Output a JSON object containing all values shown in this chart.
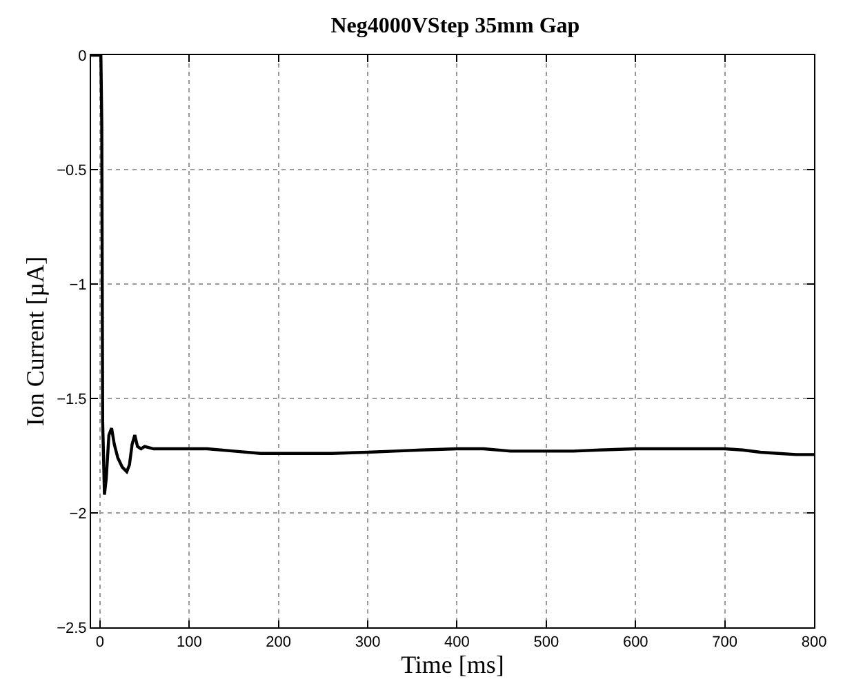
{
  "chart_data": {
    "type": "line",
    "title": "Neg4000VStep 35mm Gap",
    "xlabel": "Time [ms]",
    "ylabel": "Ion Current [µA]",
    "xlim": [
      -10,
      800
    ],
    "xticks": [
      0,
      100,
      200,
      300,
      400,
      500,
      600,
      700,
      800
    ],
    "ylim": [
      -2.5,
      0
    ],
    "yticks": [
      {
        "value": -2.5,
        "label": "−2.5"
      },
      {
        "value": -2,
        "label": "−2"
      },
      {
        "value": -1.5,
        "label": "−1.5"
      },
      {
        "value": -1,
        "label": "−1"
      },
      {
        "value": -0.5,
        "label": "−0.5"
      },
      0
    ],
    "grid": true,
    "line_style": "solid",
    "marker": "none",
    "series": [
      {
        "color": "#000000",
        "x": [
          -10,
          0,
          1,
          2,
          3,
          5,
          7,
          10,
          13,
          16,
          20,
          25,
          30,
          33,
          36,
          39,
          42,
          46,
          50,
          60,
          80,
          100,
          120,
          150,
          180,
          200,
          230,
          260,
          300,
          330,
          360,
          400,
          430,
          460,
          500,
          530,
          560,
          600,
          630,
          660,
          700,
          720,
          740,
          760,
          780,
          800
        ],
        "values": [
          0,
          0,
          0,
          -0.3,
          -1.6,
          -1.92,
          -1.85,
          -1.66,
          -1.63,
          -1.7,
          -1.76,
          -1.8,
          -1.82,
          -1.79,
          -1.7,
          -1.66,
          -1.71,
          -1.72,
          -1.71,
          -1.72,
          -1.72,
          -1.72,
          -1.72,
          -1.73,
          -1.74,
          -1.74,
          -1.74,
          -1.74,
          -1.735,
          -1.73,
          -1.725,
          -1.72,
          -1.72,
          -1.73,
          -1.73,
          -1.73,
          -1.725,
          -1.72,
          -1.72,
          -1.72,
          -1.72,
          -1.725,
          -1.735,
          -1.74,
          -1.745,
          -1.745
        ]
      }
    ]
  }
}
